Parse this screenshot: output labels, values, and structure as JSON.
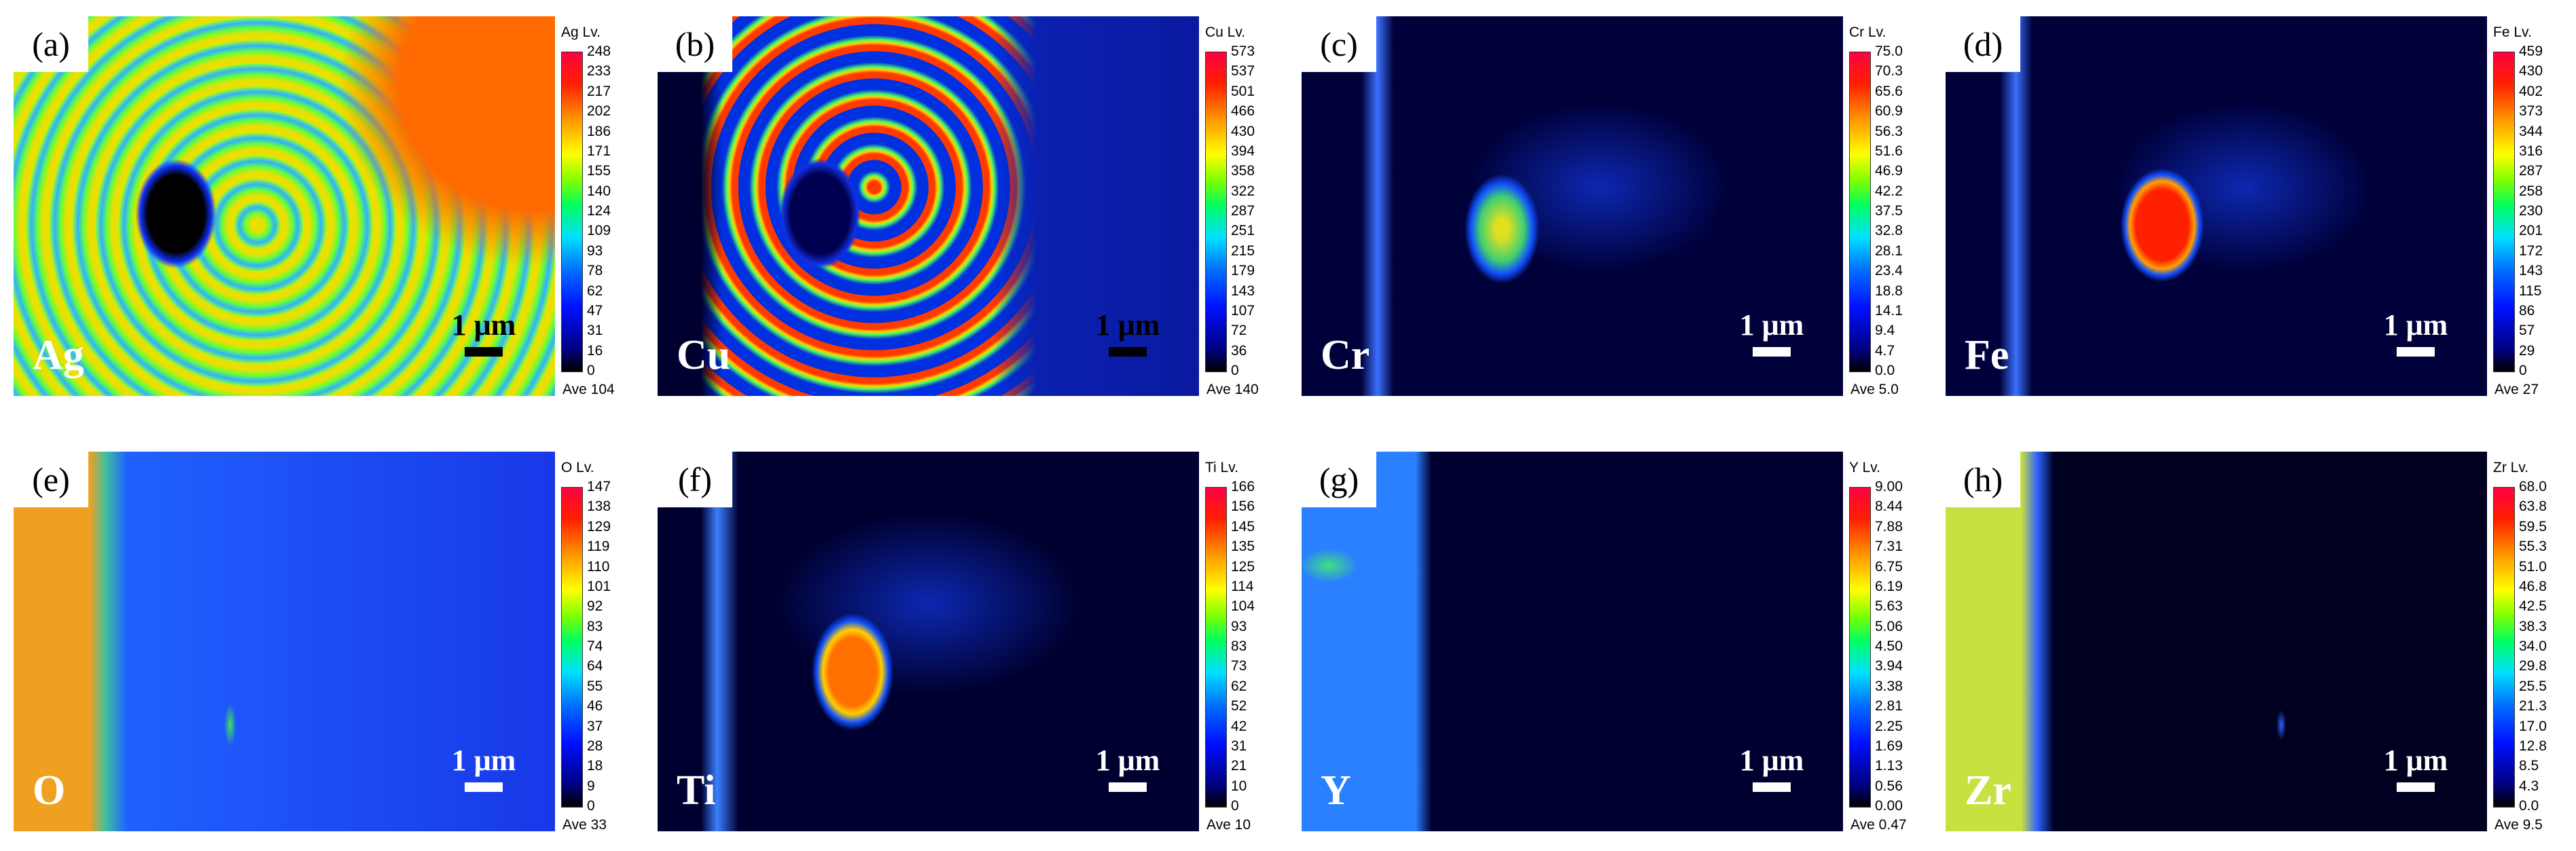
{
  "panels": [
    {
      "label": "(a)",
      "element": "Ag",
      "scale": "1 μm",
      "colorbar_title": "Ag Lv.",
      "levels": [
        "248",
        "233",
        "217",
        "202",
        "186",
        "171",
        "155",
        "140",
        "124",
        "109",
        "93",
        "78",
        "62",
        "47",
        "31",
        "16",
        "0"
      ],
      "average": "Ave 104"
    },
    {
      "label": "(b)",
      "element": "Cu",
      "scale": "1 μm",
      "colorbar_title": "Cu Lv.",
      "levels": [
        "573",
        "537",
        "501",
        "466",
        "430",
        "394",
        "358",
        "322",
        "287",
        "251",
        "215",
        "179",
        "143",
        "107",
        "72",
        "36",
        "0"
      ],
      "average": "Ave 140"
    },
    {
      "label": "(c)",
      "element": "Cr",
      "scale": "1 μm",
      "colorbar_title": "Cr Lv.",
      "levels": [
        "75.0",
        "70.3",
        "65.6",
        "60.9",
        "56.3",
        "51.6",
        "46.9",
        "42.2",
        "37.5",
        "32.8",
        "28.1",
        "23.4",
        "18.8",
        "14.1",
        "9.4",
        "4.7",
        "0.0"
      ],
      "average": "Ave 5.0"
    },
    {
      "label": "(d)",
      "element": "Fe",
      "scale": "1 μm",
      "colorbar_title": "Fe Lv.",
      "levels": [
        "459",
        "430",
        "402",
        "373",
        "344",
        "316",
        "287",
        "258",
        "230",
        "201",
        "172",
        "143",
        "115",
        "86",
        "57",
        "29",
        "0"
      ],
      "average": "Ave 27"
    },
    {
      "label": "(e)",
      "element": "O",
      "scale": "1 μm",
      "colorbar_title": "O Lv.",
      "levels": [
        "147",
        "138",
        "129",
        "119",
        "110",
        "101",
        "92",
        "83",
        "74",
        "64",
        "55",
        "46",
        "37",
        "28",
        "18",
        "9",
        "0"
      ],
      "average": "Ave 33"
    },
    {
      "label": "(f)",
      "element": "Ti",
      "scale": "1 μm",
      "colorbar_title": "Ti Lv.",
      "levels": [
        "166",
        "156",
        "145",
        "135",
        "125",
        "114",
        "104",
        "93",
        "83",
        "73",
        "62",
        "52",
        "42",
        "31",
        "21",
        "10",
        "0"
      ],
      "average": "Ave 10"
    },
    {
      "label": "(g)",
      "element": "Y",
      "scale": "1 μm",
      "colorbar_title": "Y Lv.",
      "levels": [
        "9.00",
        "8.44",
        "7.88",
        "7.31",
        "6.75",
        "6.19",
        "5.63",
        "5.06",
        "4.50",
        "3.94",
        "3.38",
        "2.81",
        "2.25",
        "1.69",
        "1.13",
        "0.56",
        "0.00"
      ],
      "average": "Ave 0.47"
    },
    {
      "label": "(h)",
      "element": "Zr",
      "scale": "1 μm",
      "colorbar_title": "Zr Lv.",
      "levels": [
        "68.0",
        "63.8",
        "59.5",
        "55.3",
        "51.0",
        "46.8",
        "42.5",
        "38.3",
        "34.0",
        "29.8",
        "25.5",
        "21.3",
        "17.0",
        "12.8",
        "8.5",
        "4.3",
        "0.0"
      ],
      "average": "Ave 9.5"
    }
  ]
}
